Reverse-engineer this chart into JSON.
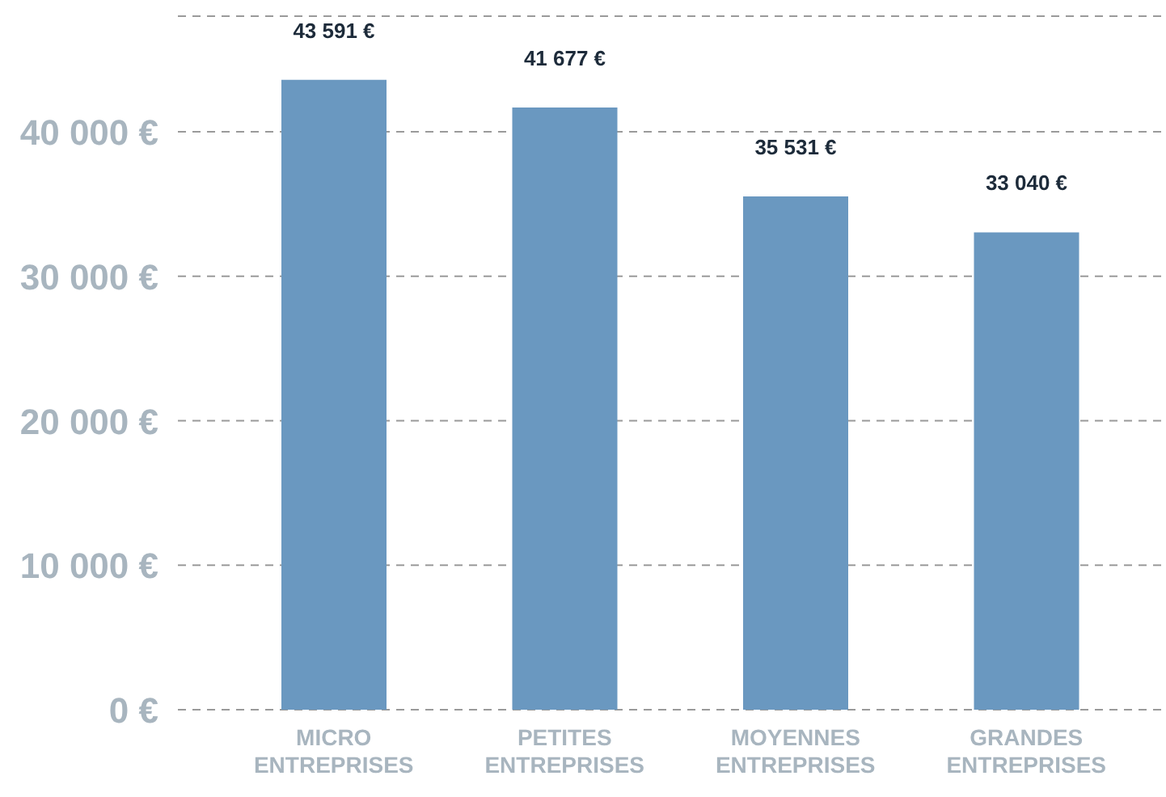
{
  "chart_data": {
    "type": "bar",
    "categories": [
      "MICRO\nENTREPRISES",
      "PETITES\nENTREPRISES",
      "MOYENNES\nENTREPRISES",
      "GRANDES\nENTREPRISES"
    ],
    "values": [
      43591,
      41677,
      35531,
      33040
    ],
    "value_labels": [
      "43 591 €",
      "41 677 €",
      "35 531 €",
      "33 040 €"
    ],
    "color": "#6a98c0",
    "ylim": [
      0,
      48000
    ],
    "yticks": [
      {
        "value": 0,
        "label": "0 €"
      },
      {
        "value": 10000,
        "label": "10 000 €"
      },
      {
        "value": 20000,
        "label": "20 000 €"
      },
      {
        "value": 30000,
        "label": "30 000 €"
      },
      {
        "value": 40000,
        "label": "40 000 €"
      }
    ],
    "grid": "y"
  }
}
